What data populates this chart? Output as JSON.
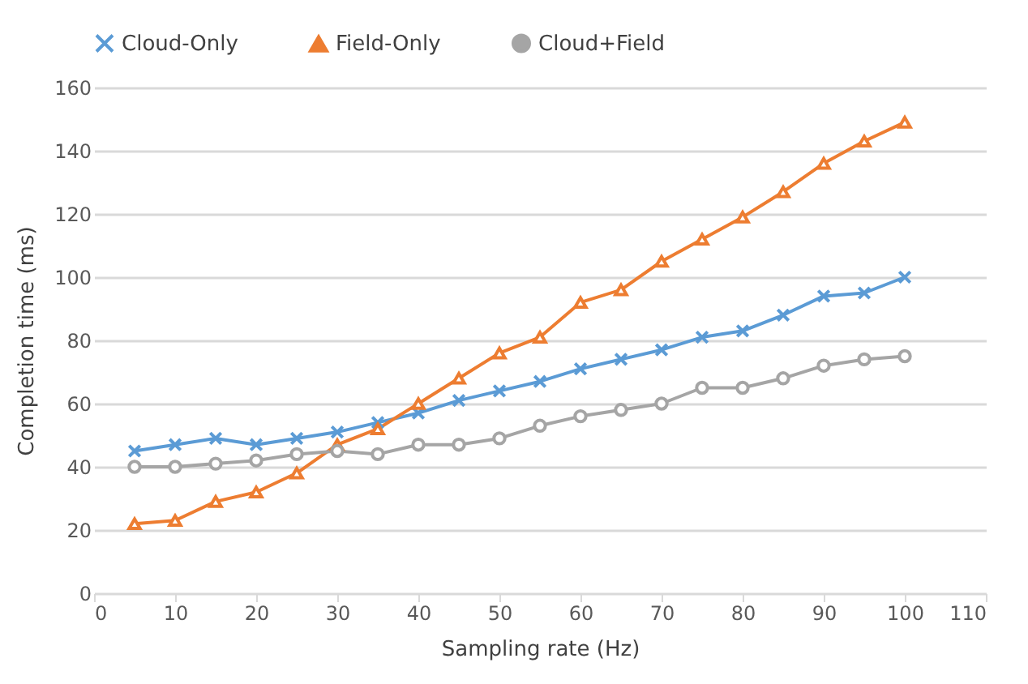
{
  "chart_data": {
    "type": "line",
    "xlabel": "Sampling rate (Hz)",
    "ylabel": "Completion time (ms)",
    "x": [
      5,
      10,
      15,
      20,
      25,
      30,
      35,
      40,
      45,
      50,
      55,
      60,
      65,
      70,
      75,
      80,
      85,
      90,
      95,
      100
    ],
    "xlim": [
      0,
      110
    ],
    "xticks": [
      0,
      10,
      20,
      30,
      40,
      50,
      60,
      70,
      80,
      90,
      100,
      110
    ],
    "ylim": [
      0,
      160
    ],
    "yticks": [
      0,
      20,
      40,
      60,
      80,
      100,
      120,
      140,
      160
    ],
    "grid": "y",
    "legend": "top",
    "line_style": "solid",
    "series": [
      {
        "name": "Cloud-Only",
        "color": "#5b9bd5",
        "marker": "cross",
        "values": [
          45,
          47,
          49,
          47,
          49,
          51,
          54,
          57,
          61,
          64,
          67,
          71,
          74,
          77,
          81,
          83,
          88,
          94,
          95,
          100
        ]
      },
      {
        "name": "Field-Only",
        "color": "#ed7d31",
        "marker": "triangle",
        "values": [
          22,
          23,
          29,
          32,
          38,
          47,
          52,
          60,
          68,
          76,
          81,
          92,
          96,
          105,
          112,
          119,
          127,
          136,
          143,
          149
        ]
      },
      {
        "name": "Cloud+Field",
        "color": "#a5a5a5",
        "marker": "circle",
        "values": [
          40,
          40,
          41,
          42,
          44,
          45,
          44,
          47,
          47,
          49,
          53,
          56,
          58,
          60,
          65,
          65,
          68,
          72,
          74,
          75
        ]
      }
    ]
  }
}
